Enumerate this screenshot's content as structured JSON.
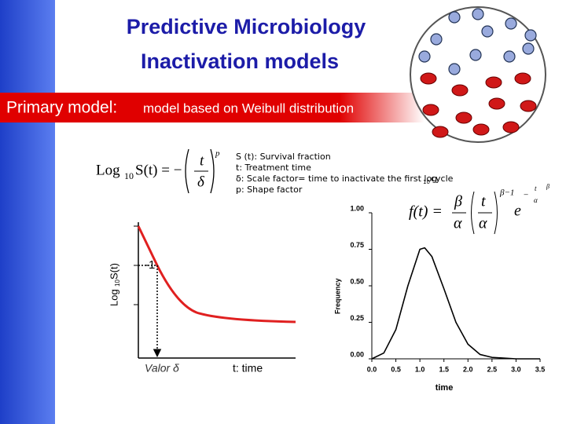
{
  "header": {
    "title": "Predictive Microbiology",
    "subtitle": "Inactivation models"
  },
  "banner": {
    "label": "Primary model:",
    "text": "model based on Weibull distribution"
  },
  "equation": {
    "log": "Log",
    "sub": "10",
    "lhs": "S(t) = −",
    "t": "t",
    "delta": "δ",
    "p": "p"
  },
  "definitions": {
    "s": "S (t): Survival fraction",
    "t": "t: Treatment time",
    "delta": "δ: Scale factor= time to inactivate the first log",
    "delta_sub": "10",
    "delta_end": "cycle",
    "p": "p: Shape factor"
  },
  "schematic": {
    "ylabel": "Log",
    "ylabel_sub": "10",
    "ylabel_end": " S(t)",
    "tick": "-1",
    "delta_label": "Valor δ",
    "xlabel": "t: time"
  },
  "density_equation": {
    "lhs": "f(t) =",
    "beta": "β",
    "alpha": "α",
    "t": "t",
    "exp": "β−1",
    "e": "e",
    "neg": "−",
    "pow": "β"
  },
  "chart_data": {
    "type": "line",
    "x": [
      0,
      0.25,
      0.5,
      0.75,
      1.0,
      1.1,
      1.25,
      1.5,
      1.75,
      2.0,
      2.25,
      2.5,
      3.0,
      3.5
    ],
    "series": [
      {
        "name": "f(t)",
        "color": "#000000",
        "values": [
          0,
          0.04,
          0.2,
          0.5,
          0.75,
          0.76,
          0.7,
          0.48,
          0.25,
          0.1,
          0.03,
          0.01,
          0,
          0
        ]
      }
    ],
    "xlabel": "time",
    "ylabel": "Frequency",
    "xlim": [
      0,
      3.5
    ],
    "ylim": [
      0,
      1
    ],
    "xticks": [
      {
        "value": 0,
        "label": "0.0"
      },
      0.5,
      {
        "value": 1,
        "label": "1.0"
      },
      1.5,
      {
        "value": 2,
        "label": "2.0"
      },
      2.5,
      {
        "value": 3,
        "label": "3.0"
      },
      3.5
    ],
    "yticks": [
      {
        "value": 0,
        "label": "0.00"
      },
      0.25,
      {
        "value": 0.5,
        "label": "0.50"
      },
      0.75,
      {
        "value": 1,
        "label": "1.00"
      }
    ]
  }
}
